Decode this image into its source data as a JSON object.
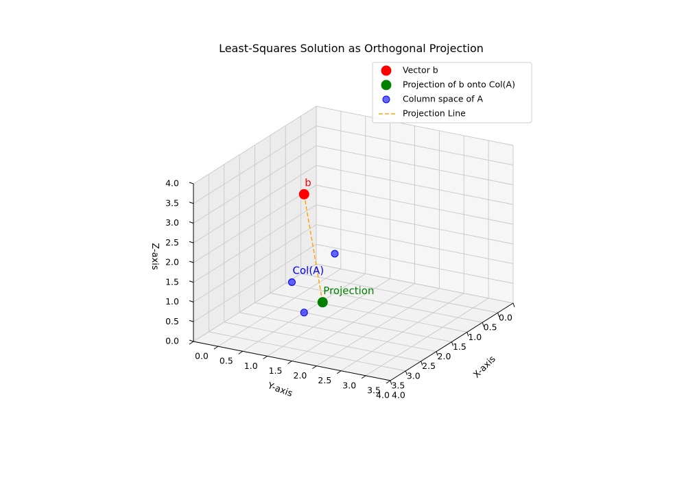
{
  "chart_data": {
    "type": "scatter",
    "title": "Least-Squares Solution as Orthogonal Projection",
    "xlabel": "X-axis",
    "ylabel": "Y-axis",
    "zlabel": "Z-axis",
    "xlim": [
      0,
      4
    ],
    "ylim": [
      0,
      4
    ],
    "zlim": [
      0,
      4
    ],
    "ticks": [
      "0.0",
      "0.5",
      "1.0",
      "1.5",
      "2.0",
      "2.5",
      "3.0",
      "3.5",
      "4.0"
    ],
    "grid": true,
    "legend_position": "top-right",
    "series": [
      {
        "name": "Vector b",
        "kind": "point",
        "color": "#ff0000",
        "points": [
          [
            1,
            2,
            3
          ]
        ]
      },
      {
        "name": "Projection of b onto Col(A)",
        "kind": "point",
        "color": "#008000",
        "points": [
          [
            2,
            3,
            1
          ]
        ]
      },
      {
        "name": "Column space of A",
        "kind": "point",
        "color": "#0000ff",
        "points": [
          [
            1,
            1,
            1
          ],
          [
            1,
            2,
            0
          ],
          [
            2,
            4,
            2
          ]
        ]
      },
      {
        "name": "Projection Line",
        "kind": "line",
        "color": "#ffa500",
        "points": [
          [
            1,
            2,
            3
          ],
          [
            2,
            3,
            1
          ]
        ]
      }
    ],
    "annotations": [
      {
        "text": "b",
        "color": "#ff0000",
        "at": [
          1,
          2,
          3
        ]
      },
      {
        "text": "Projection",
        "color": "#008000",
        "at": [
          2,
          3,
          1
        ]
      },
      {
        "text": "Col(A)",
        "color": "#0000ff",
        "at": [
          2,
          4,
          2
        ]
      }
    ]
  }
}
